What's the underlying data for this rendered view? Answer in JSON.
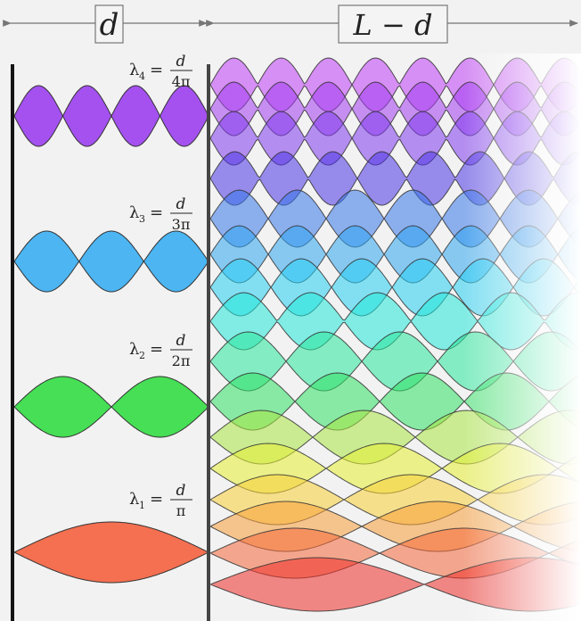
{
  "header": {
    "left_label": "d",
    "right_label": "L − d"
  },
  "modes": [
    {
      "n": 4,
      "lambda_label": "λ4 =",
      "sub": "4",
      "numerator": "d",
      "denominator": "4π",
      "color": "#9b3ff0"
    },
    {
      "n": 3,
      "lambda_label": "λ3 =",
      "sub": "3",
      "numerator": "d",
      "denominator": "3π",
      "color": "#3aaef2"
    },
    {
      "n": 2,
      "lambda_label": "λ2 =",
      "sub": "2",
      "numerator": "d",
      "denominator": "2π",
      "color": "#33dd44"
    },
    {
      "n": 1,
      "lambda_label": "λ1 =",
      "sub": "1",
      "numerator": "d",
      "denominator": "π",
      "color": "#f4623f"
    }
  ],
  "wave_colors": [
    "#c03ef5",
    "#a23cf0",
    "#7f3aee",
    "#4a35e6",
    "#3677ea",
    "#2fa6f0",
    "#27d0f2",
    "#22e8d8",
    "#2ae89a",
    "#2fe262",
    "#a9e642",
    "#e6ef33",
    "#f7cf37",
    "#f79e3a",
    "#f4683a",
    "#ee2d28"
  ]
}
